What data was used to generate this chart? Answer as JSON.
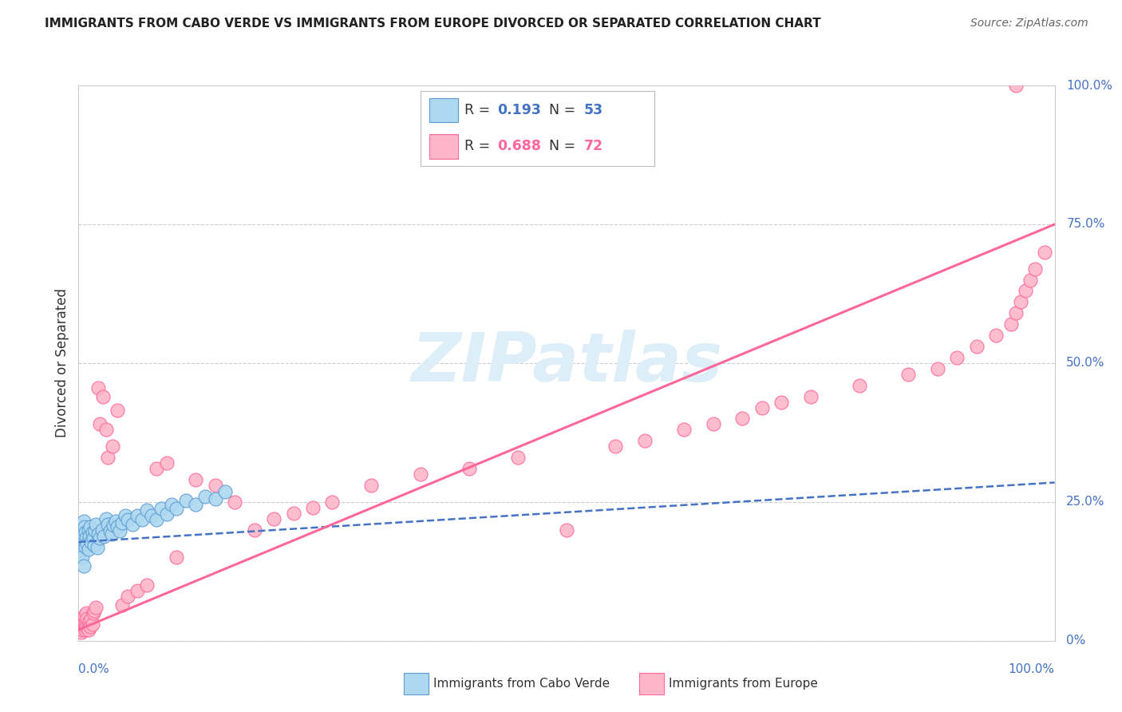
{
  "title": "IMMIGRANTS FROM CABO VERDE VS IMMIGRANTS FROM EUROPE DIVORCED OR SEPARATED CORRELATION CHART",
  "source": "Source: ZipAtlas.com",
  "ylabel": "Divorced or Separated",
  "cabo_verde_color": "#ADD8F0",
  "europe_color": "#FFB6C8",
  "cabo_verde_edge": "#5B9BD5",
  "europe_edge": "#FF6699",
  "trend_blue_color": "#4472C4",
  "trend_pink_color": "#FF6699",
  "watermark": "ZIPatlas",
  "watermark_color": "#DDEEF8",
  "cabo_verde_R": 0.193,
  "cabo_verde_N": 53,
  "europe_R": 0.688,
  "europe_N": 72,
  "xlim": [
    0,
    1.0
  ],
  "ylim": [
    0,
    1.0
  ],
  "right_ytick_labels": [
    "0%",
    "25.0%",
    "50.0%",
    "75.0%",
    "100.0%"
  ],
  "right_ytick_vals": [
    0.0,
    0.25,
    0.5,
    0.75,
    1.0
  ],
  "cv_x": [
    0.001,
    0.002,
    0.003,
    0.003,
    0.004,
    0.005,
    0.005,
    0.006,
    0.007,
    0.007,
    0.008,
    0.009,
    0.01,
    0.01,
    0.011,
    0.012,
    0.013,
    0.014,
    0.015,
    0.016,
    0.017,
    0.018,
    0.019,
    0.02,
    0.022,
    0.024,
    0.026,
    0.028,
    0.03,
    0.032,
    0.034,
    0.036,
    0.038,
    0.04,
    0.042,
    0.045,
    0.048,
    0.05,
    0.055,
    0.06,
    0.065,
    0.07,
    0.075,
    0.08,
    0.085,
    0.09,
    0.095,
    0.1,
    0.11,
    0.12,
    0.13,
    0.14,
    0.15
  ],
  "cv_y": [
    0.175,
    0.16,
    0.195,
    0.165,
    0.15,
    0.215,
    0.135,
    0.205,
    0.17,
    0.195,
    0.185,
    0.175,
    0.2,
    0.165,
    0.188,
    0.205,
    0.178,
    0.195,
    0.185,
    0.172,
    0.198,
    0.21,
    0.168,
    0.192,
    0.185,
    0.2,
    0.188,
    0.22,
    0.21,
    0.198,
    0.192,
    0.208,
    0.215,
    0.205,
    0.198,
    0.212,
    0.225,
    0.218,
    0.21,
    0.225,
    0.218,
    0.235,
    0.225,
    0.218,
    0.238,
    0.228,
    0.245,
    0.238,
    0.252,
    0.245,
    0.26,
    0.255,
    0.268
  ],
  "eu_x": [
    0.001,
    0.002,
    0.003,
    0.003,
    0.004,
    0.004,
    0.005,
    0.006,
    0.006,
    0.007,
    0.007,
    0.008,
    0.008,
    0.009,
    0.01,
    0.01,
    0.011,
    0.012,
    0.013,
    0.014,
    0.015,
    0.016,
    0.018,
    0.02,
    0.022,
    0.025,
    0.028,
    0.03,
    0.035,
    0.04,
    0.045,
    0.05,
    0.06,
    0.07,
    0.08,
    0.09,
    0.1,
    0.12,
    0.14,
    0.16,
    0.18,
    0.2,
    0.22,
    0.24,
    0.26,
    0.3,
    0.35,
    0.4,
    0.45,
    0.5,
    0.55,
    0.58,
    0.62,
    0.65,
    0.68,
    0.7,
    0.72,
    0.75,
    0.8,
    0.85,
    0.88,
    0.9,
    0.92,
    0.94,
    0.955,
    0.96,
    0.965,
    0.97,
    0.975,
    0.98,
    0.99,
    0.96
  ],
  "eu_y": [
    0.03,
    0.025,
    0.035,
    0.015,
    0.04,
    0.02,
    0.03,
    0.025,
    0.045,
    0.03,
    0.02,
    0.05,
    0.025,
    0.04,
    0.03,
    0.02,
    0.035,
    0.025,
    0.04,
    0.03,
    0.05,
    0.055,
    0.06,
    0.455,
    0.39,
    0.44,
    0.38,
    0.33,
    0.35,
    0.415,
    0.065,
    0.08,
    0.09,
    0.1,
    0.31,
    0.32,
    0.15,
    0.29,
    0.28,
    0.25,
    0.2,
    0.22,
    0.23,
    0.24,
    0.25,
    0.28,
    0.3,
    0.31,
    0.33,
    0.2,
    0.35,
    0.36,
    0.38,
    0.39,
    0.4,
    0.42,
    0.43,
    0.44,
    0.46,
    0.48,
    0.49,
    0.51,
    0.53,
    0.55,
    0.57,
    0.59,
    0.61,
    0.63,
    0.65,
    0.67,
    0.7,
    1.0
  ],
  "trend_cv_x0": 0.0,
  "trend_cv_x1": 1.0,
  "trend_cv_y0": 0.178,
  "trend_cv_y1": 0.285,
  "trend_eu_x0": 0.0,
  "trend_eu_x1": 1.0,
  "trend_eu_y0": 0.02,
  "trend_eu_y1": 0.75
}
